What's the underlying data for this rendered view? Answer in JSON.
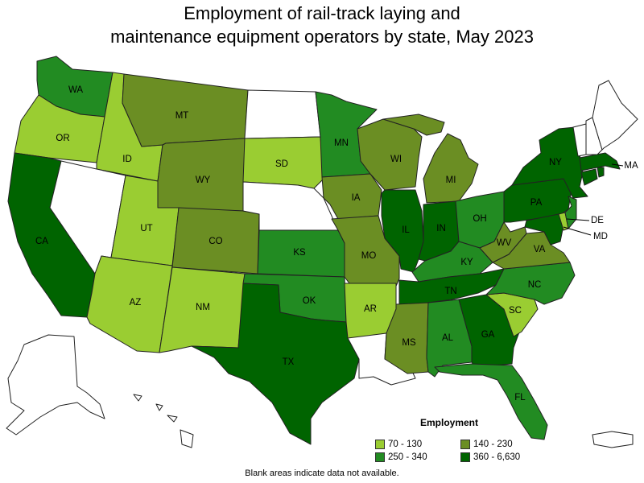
{
  "title": {
    "line1": "Employment of rail-track laying and",
    "line2": "maintenance equipment operators by state, May 2023"
  },
  "legend": {
    "title": "Employment",
    "items": [
      {
        "label": "70 - 130",
        "color": "#9acd32"
      },
      {
        "label": "140 - 230",
        "color": "#6b8e23"
      },
      {
        "label": "250 - 340",
        "color": "#228b22"
      },
      {
        "label": "360 - 6,630",
        "color": "#006400"
      }
    ]
  },
  "footnote": "Blank areas indicate data not available.",
  "states": {
    "WA": {
      "label": "WA",
      "bin": "250 - 340"
    },
    "OR": {
      "label": "OR",
      "bin": "70 - 130"
    },
    "CA": {
      "label": "CA",
      "bin": "360 - 6,630"
    },
    "ID": {
      "label": "ID",
      "bin": "70 - 130"
    },
    "NV": {
      "label": "",
      "bin": ""
    },
    "MT": {
      "label": "MT",
      "bin": "140 - 230"
    },
    "WY": {
      "label": "WY",
      "bin": "140 - 230"
    },
    "UT": {
      "label": "UT",
      "bin": "70 - 130"
    },
    "AZ": {
      "label": "AZ",
      "bin": "70 - 130"
    },
    "CO": {
      "label": "CO",
      "bin": "140 - 230"
    },
    "NM": {
      "label": "NM",
      "bin": "70 - 130"
    },
    "ND": {
      "label": "",
      "bin": ""
    },
    "SD": {
      "label": "SD",
      "bin": "70 - 130"
    },
    "NE": {
      "label": "",
      "bin": ""
    },
    "KS": {
      "label": "KS",
      "bin": "250 - 340"
    },
    "OK": {
      "label": "OK",
      "bin": "250 - 340"
    },
    "TX": {
      "label": "TX",
      "bin": "360 - 6,630"
    },
    "MN": {
      "label": "MN",
      "bin": "250 - 340"
    },
    "IA": {
      "label": "IA",
      "bin": "140 - 230"
    },
    "MO": {
      "label": "MO",
      "bin": "140 - 230"
    },
    "AR": {
      "label": "AR",
      "bin": "70 - 130"
    },
    "LA": {
      "label": "",
      "bin": ""
    },
    "WI": {
      "label": "WI",
      "bin": "140 - 230"
    },
    "IL": {
      "label": "IL",
      "bin": "360 - 6,630"
    },
    "MI": {
      "label": "MI",
      "bin": "140 - 230"
    },
    "IN": {
      "label": "IN",
      "bin": "360 - 6,630"
    },
    "OH": {
      "label": "OH",
      "bin": "250 - 340"
    },
    "KY": {
      "label": "KY",
      "bin": "250 - 340"
    },
    "TN": {
      "label": "TN",
      "bin": "360 - 6,630"
    },
    "MS": {
      "label": "MS",
      "bin": "140 - 230"
    },
    "AL": {
      "label": "AL",
      "bin": "250 - 340"
    },
    "GA": {
      "label": "GA",
      "bin": "360 - 6,630"
    },
    "FL": {
      "label": "FL",
      "bin": "250 - 340"
    },
    "SC": {
      "label": "SC",
      "bin": "70 - 130"
    },
    "NC": {
      "label": "NC",
      "bin": "250 - 340"
    },
    "VA": {
      "label": "VA",
      "bin": "140 - 230"
    },
    "WV": {
      "label": "WV",
      "bin": "140 - 230"
    },
    "PA": {
      "label": "PA",
      "bin": "360 - 6,630"
    },
    "NY": {
      "label": "NY",
      "bin": "360 - 6,630"
    },
    "MD": {
      "label": "MD",
      "bin": "360 - 6,630"
    },
    "DE": {
      "label": "DE",
      "bin": "70 - 130"
    },
    "NJ": {
      "label": "",
      "bin": "250 - 340"
    },
    "MA": {
      "label": "MA",
      "bin": "360 - 6,630"
    },
    "CT": {
      "label": "",
      "bin": "360 - 6,630"
    },
    "RI": {
      "label": "",
      "bin": "360 - 6,630"
    },
    "VT": {
      "label": "",
      "bin": ""
    },
    "NH": {
      "label": "",
      "bin": ""
    },
    "ME": {
      "label": "",
      "bin": ""
    },
    "AK": {
      "label": "",
      "bin": ""
    },
    "HI": {
      "label": "",
      "bin": ""
    },
    "PR": {
      "label": "",
      "bin": ""
    }
  }
}
